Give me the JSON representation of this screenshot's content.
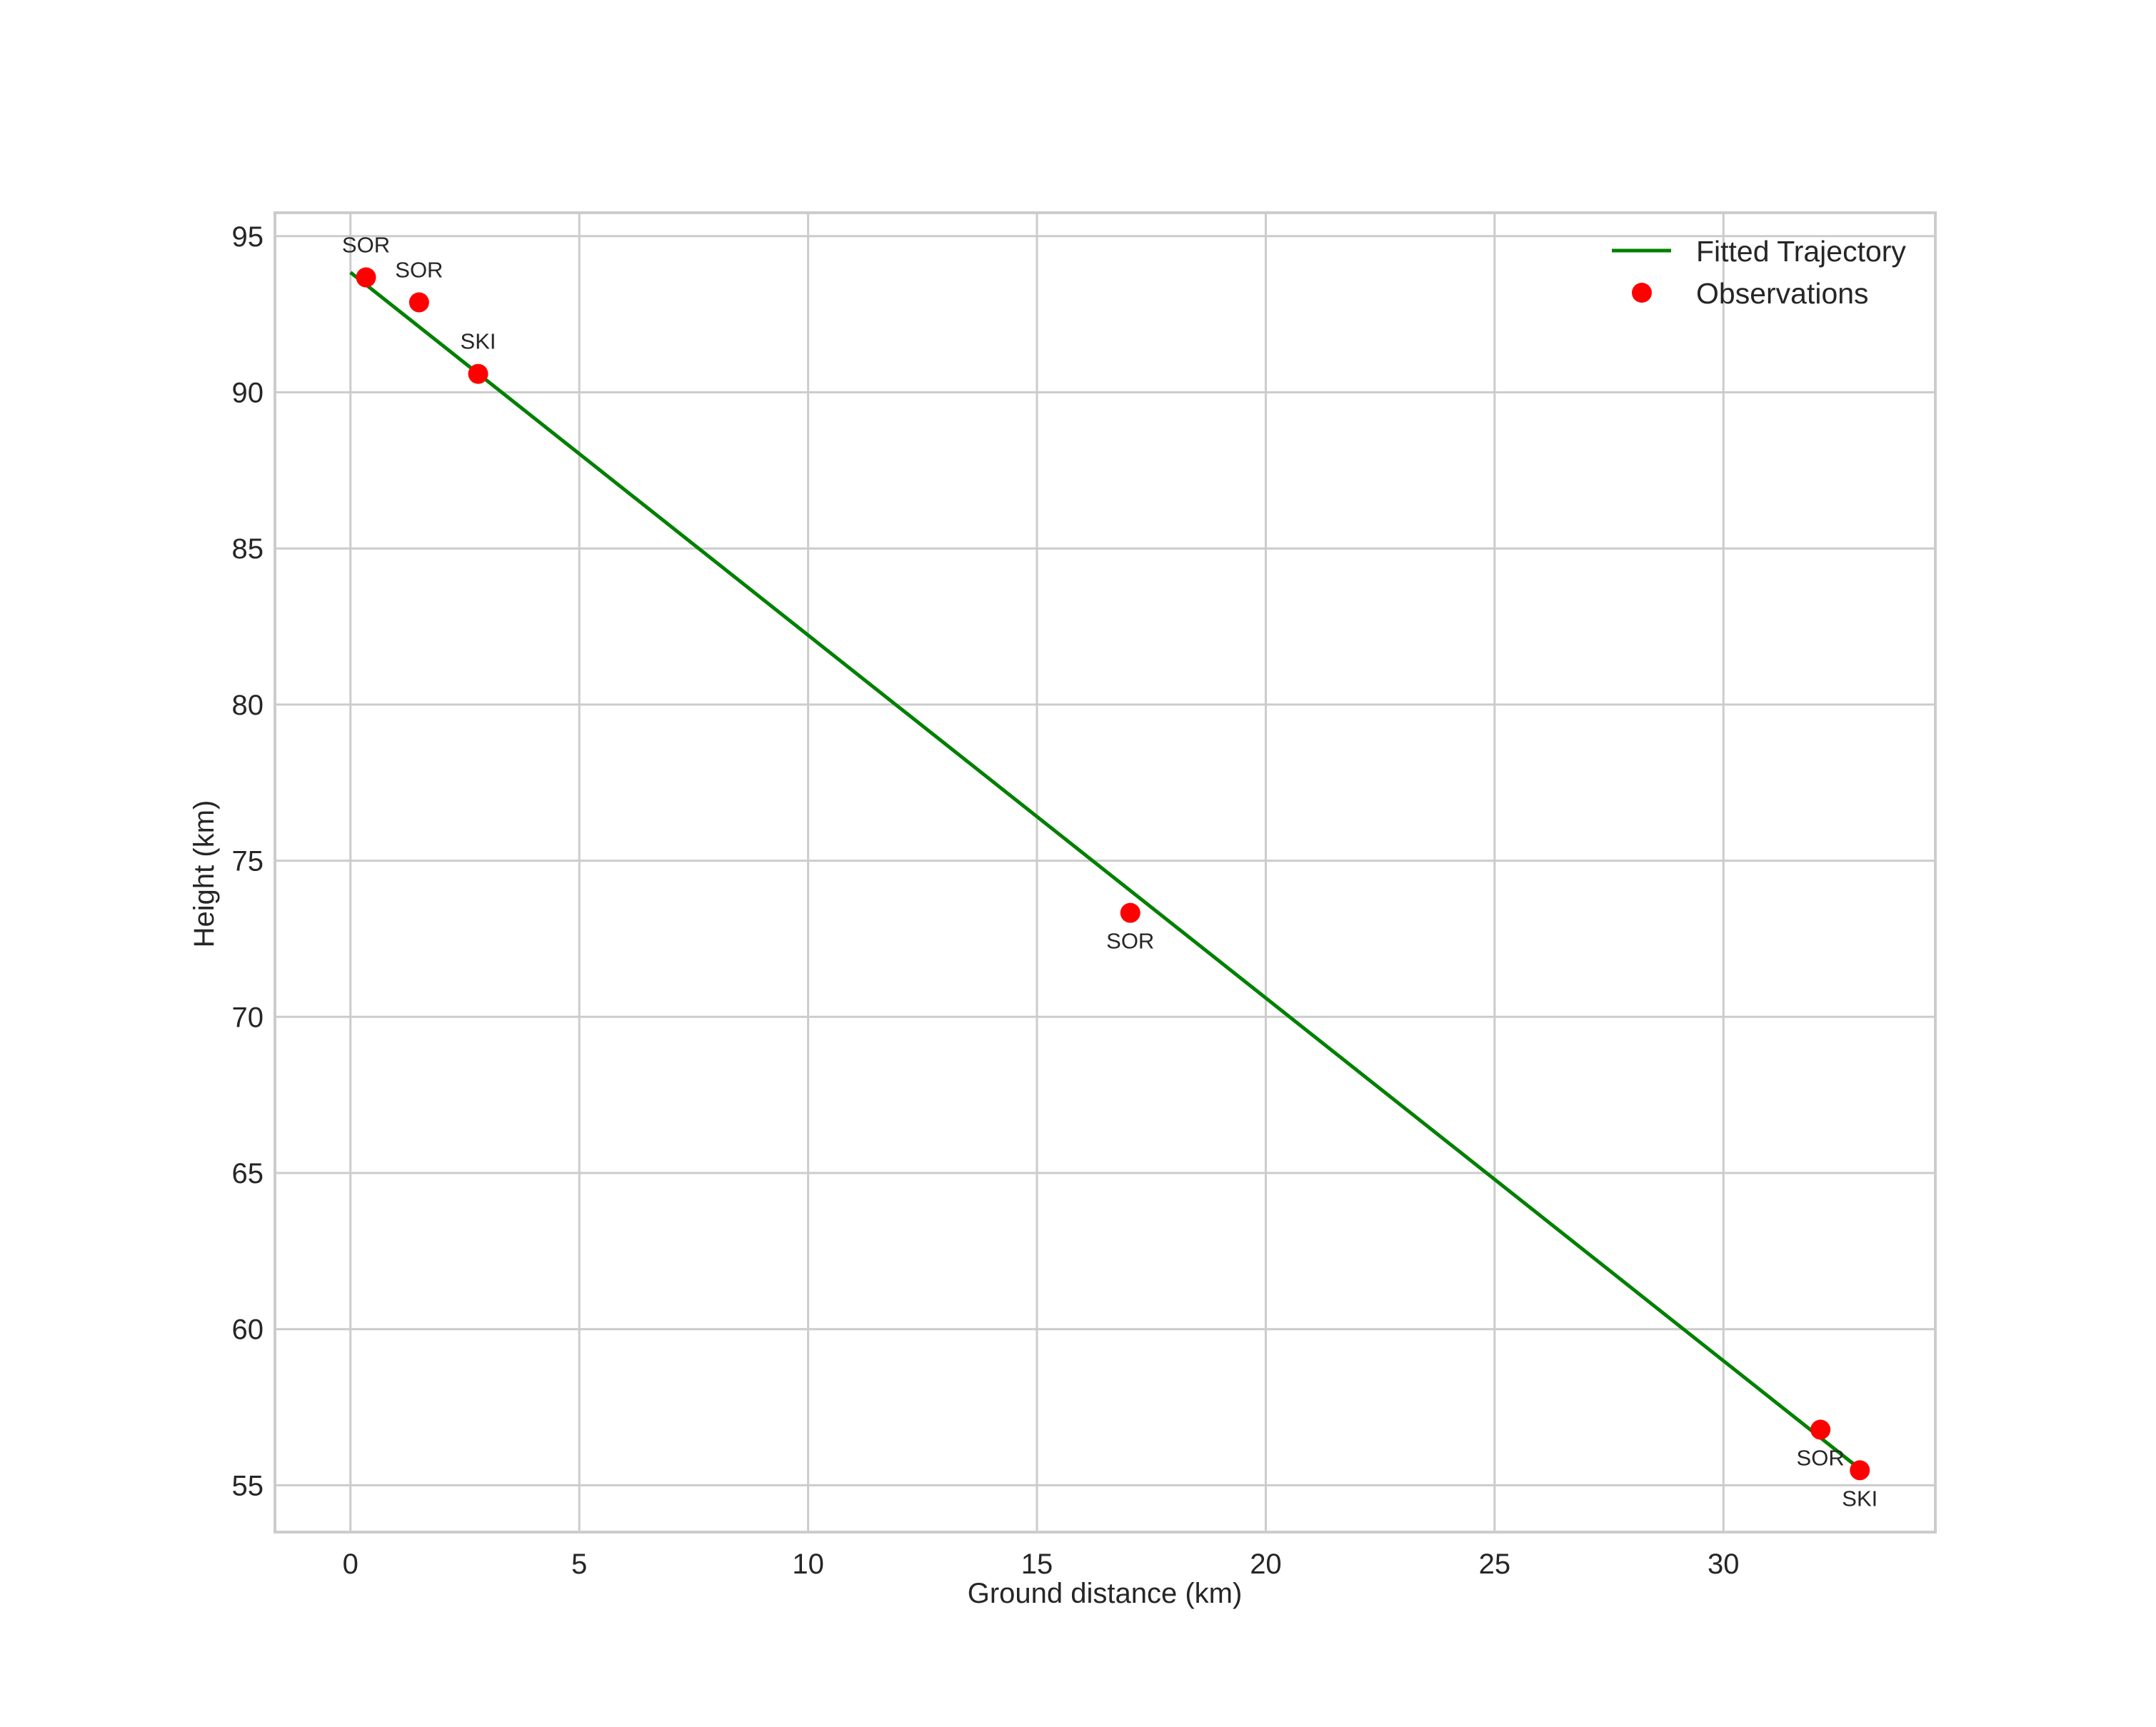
{
  "chart_data": {
    "type": "line+scatter",
    "title": "",
    "xlabel": "Ground distance (km)",
    "ylabel": "Height (km)",
    "xlim": [
      -1.65,
      34.63
    ],
    "ylim": [
      53.5,
      95.75
    ],
    "xticks": [
      0,
      5,
      10,
      15,
      20,
      25,
      30
    ],
    "yticks": [
      55,
      60,
      65,
      70,
      75,
      80,
      85,
      90,
      95
    ],
    "grid": true,
    "legend_position": "upper right",
    "series": [
      {
        "name": "Fitted Trajectory",
        "type": "line",
        "color": "#008000",
        "x": [
          0.0,
          33.0
        ],
        "y": [
          93.84,
          55.5
        ]
      },
      {
        "name": "Observations",
        "type": "scatter",
        "color": "#ff0000",
        "x": [
          0.34,
          1.5,
          2.79,
          17.04,
          32.12,
          32.98
        ],
        "y": [
          93.68,
          92.88,
          90.59,
          73.33,
          56.78,
          55.48
        ],
        "labels": [
          "SOR",
          "SOR",
          "SKI",
          "SOR",
          "SOR",
          "SKI"
        ]
      }
    ]
  },
  "legend": {
    "line_label": "Fitted Trajectory",
    "marker_label": "Observations"
  },
  "colors": {
    "line": "#008000",
    "marker": "#ff0000",
    "grid": "#cccccc",
    "text": "#262626"
  }
}
